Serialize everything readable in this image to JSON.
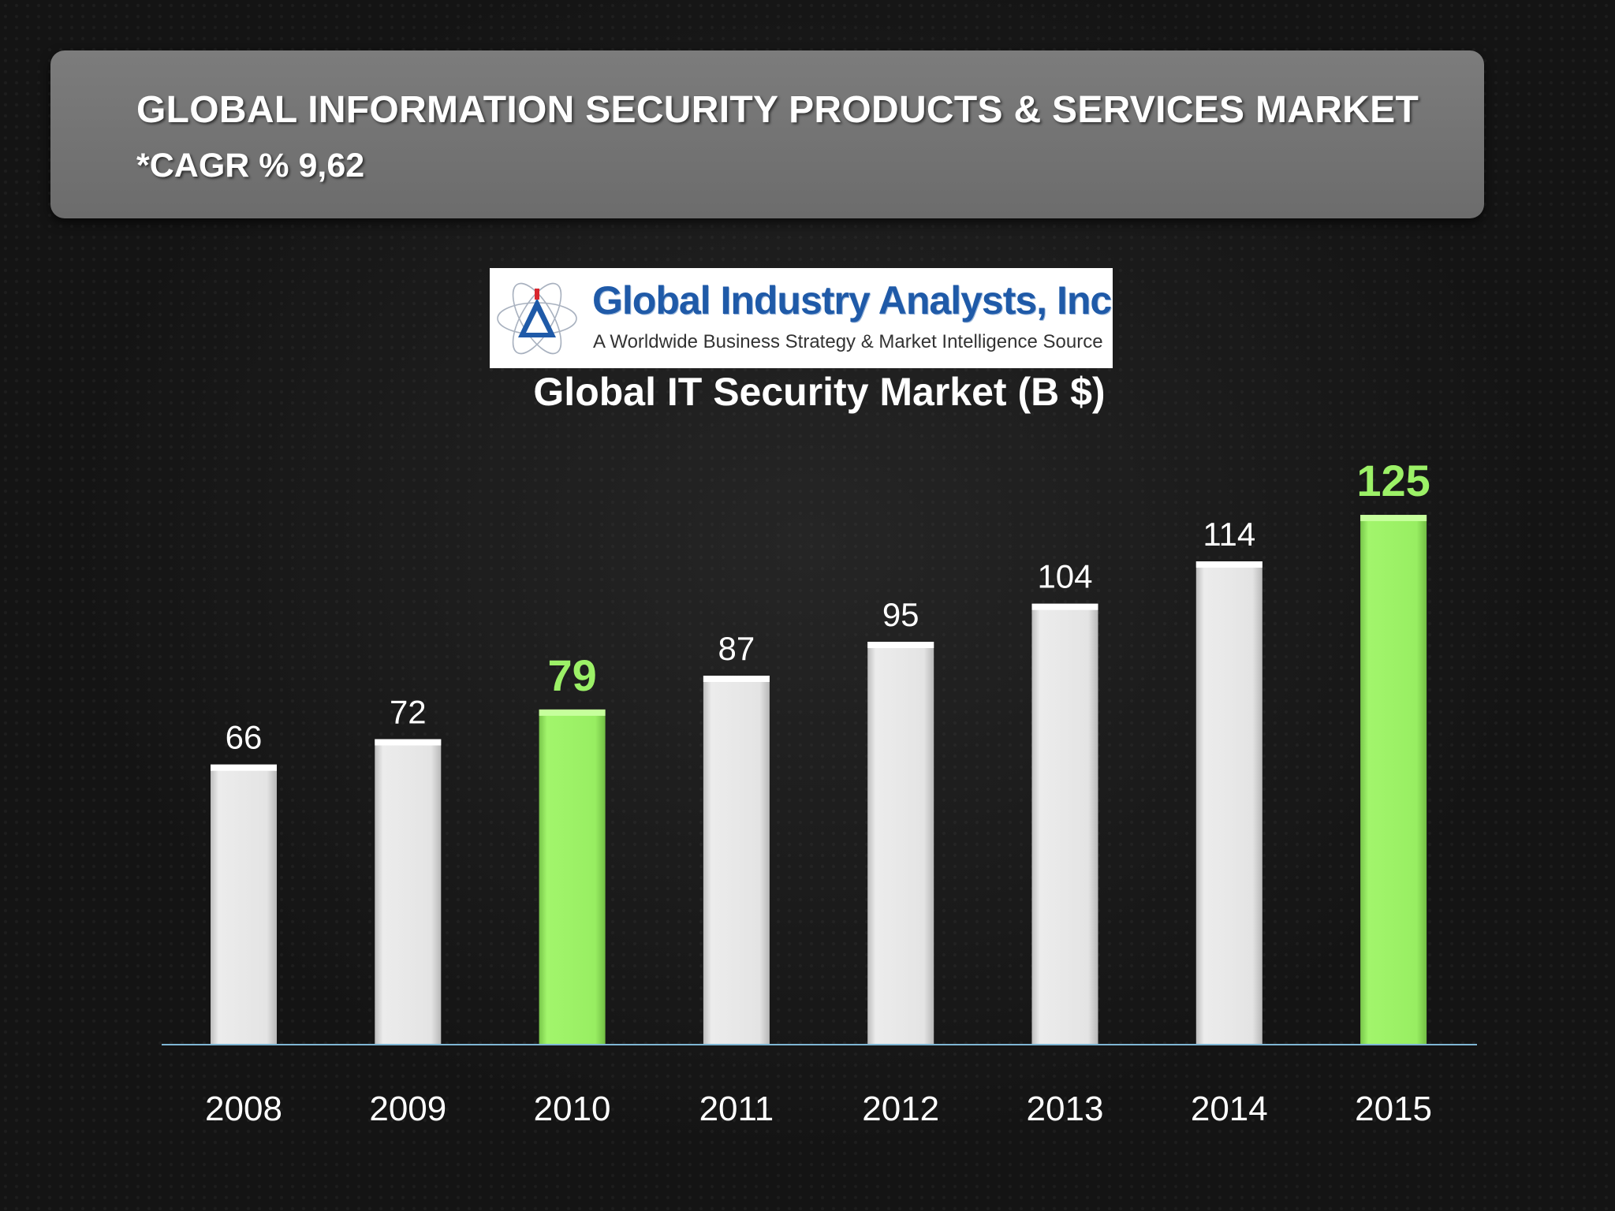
{
  "header": {
    "title": "GLOBAL INFORMATION SECURITY PRODUCTS & SERVICES MARKET",
    "subtitle": "*CAGR  % 9,62"
  },
  "logo": {
    "name": "Global Industry Analysts, Inc.",
    "tagline": "A Worldwide Business Strategy & Market Intelligence Source"
  },
  "chart_data": {
    "type": "bar",
    "title": "Global IT Security Market (B $)",
    "xlabel": "",
    "ylabel": "",
    "categories": [
      "2008",
      "2009",
      "2010",
      "2011",
      "2012",
      "2013",
      "2014",
      "2015"
    ],
    "values": [
      66,
      72,
      79,
      87,
      95,
      104,
      114,
      125
    ],
    "highlighted": [
      "2010",
      "2015"
    ],
    "ylim": [
      0,
      125
    ],
    "grid": false,
    "legend": "none",
    "colors": {
      "bar": "#e6e6e6",
      "highlight": "#9cf167",
      "baseline": "#7fb6d4",
      "label": "#ffffff",
      "highlight_label": "#9cf167"
    }
  }
}
